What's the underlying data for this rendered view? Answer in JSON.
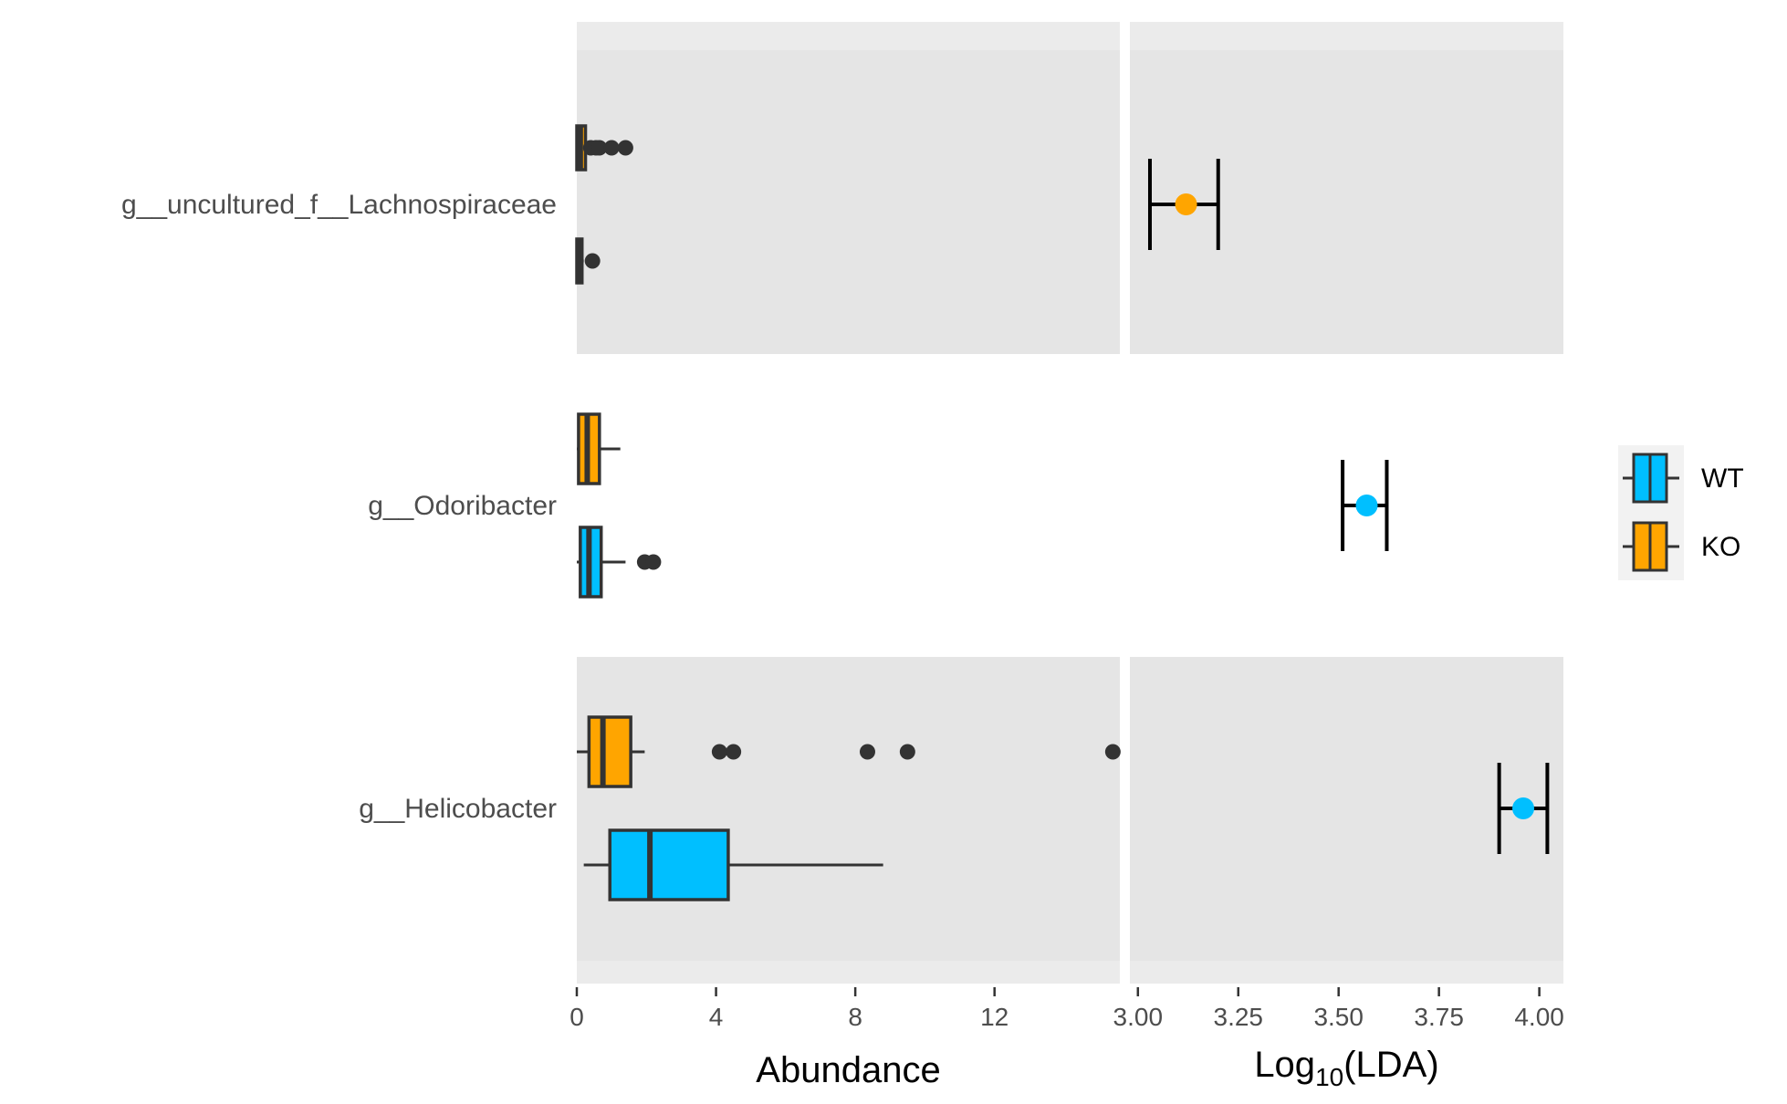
{
  "chart_data": [
    {
      "type": "box",
      "xlabel": "Abundance",
      "xlim": [
        0,
        15.6
      ],
      "xticks": [
        "0",
        "4",
        "8",
        "12"
      ],
      "xtick_values": [
        0,
        4,
        8,
        12
      ],
      "grid": false,
      "categories": [
        "g__uncultured_f__Lachnospiraceae",
        "g__Odoribacter",
        "g__Helicobacter"
      ],
      "series": [
        {
          "name": "WT",
          "color": "#00BFFF",
          "boxes": [
            {
              "category": "g__uncultured_f__Lachnospiraceae",
              "q1": 0.0,
              "median": 0.05,
              "q3": 0.15,
              "whisker_low": 0.0,
              "whisker_high": 0.2,
              "outliers": [
                0.45
              ]
            },
            {
              "category": "g__Odoribacter",
              "q1": 0.1,
              "median": 0.35,
              "q3": 0.7,
              "whisker_low": 0.0,
              "whisker_high": 1.4,
              "outliers": [
                1.95,
                2.2
              ]
            },
            {
              "category": "g__Helicobacter",
              "q1": 0.95,
              "median": 2.1,
              "q3": 4.35,
              "whisker_low": 0.2,
              "whisker_high": 8.8,
              "outliers": []
            }
          ]
        },
        {
          "name": "KO",
          "color": "#FFA500",
          "boxes": [
            {
              "category": "g__uncultured_f__Lachnospiraceae",
              "q1": 0.0,
              "median": 0.1,
              "q3": 0.25,
              "whisker_low": 0.0,
              "whisker_high": 0.3,
              "outliers": [
                0.4,
                0.55,
                0.65,
                1.0,
                1.4
              ]
            },
            {
              "category": "g__Odoribacter",
              "q1": 0.05,
              "median": 0.3,
              "q3": 0.65,
              "whisker_low": 0.0,
              "whisker_high": 1.25,
              "outliers": []
            },
            {
              "category": "g__Helicobacter",
              "q1": 0.35,
              "median": 0.75,
              "q3": 1.55,
              "whisker_low": 0.0,
              "whisker_high": 1.95,
              "outliers": [
                4.1,
                4.5,
                8.35,
                9.5,
                15.4
              ]
            }
          ]
        }
      ]
    },
    {
      "type": "errorbar",
      "xlabel": "Log10(LDA)",
      "xlabel_main": "Log",
      "xlabel_sub": "10",
      "xlabel_tail": "(LDA)",
      "xlim": [
        2.98,
        4.06
      ],
      "xticks": [
        "3.00",
        "3.25",
        "3.50",
        "3.75",
        "4.00"
      ],
      "xtick_values": [
        3.0,
        3.25,
        3.5,
        3.75,
        4.0
      ],
      "grid": false,
      "points": [
        {
          "category": "g__uncultured_f__Lachnospiraceae",
          "group": "KO",
          "value": 3.12,
          "low": 3.03,
          "high": 3.2
        },
        {
          "category": "g__Odoribacter",
          "group": "WT",
          "value": 3.57,
          "low": 3.51,
          "high": 3.62
        },
        {
          "category": "g__Helicobacter",
          "group": "WT",
          "value": 3.96,
          "low": 3.9,
          "high": 4.02
        }
      ]
    }
  ],
  "legend": {
    "placement": "right",
    "items": [
      {
        "label": "WT",
        "color": "#00BFFF"
      },
      {
        "label": "KO",
        "color": "#FFA500"
      }
    ]
  },
  "colors": {
    "panel_shaded": "#E5E5E5",
    "panel_outer": "#EBEBEB",
    "box_outline": "#333333",
    "errorbar": "#000000"
  }
}
